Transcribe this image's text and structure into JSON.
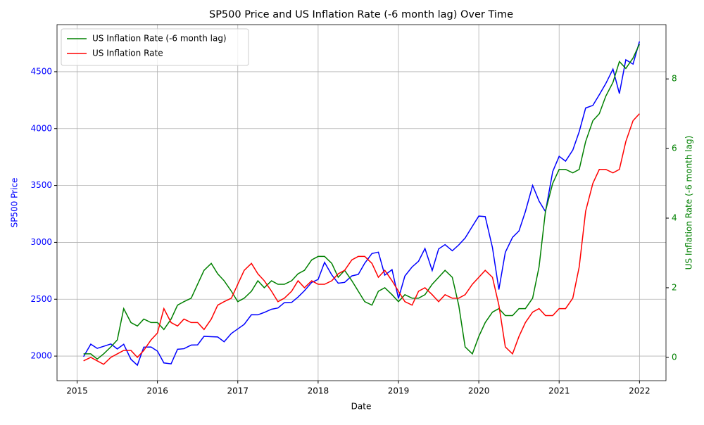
{
  "chart_data": {
    "type": "line",
    "title": "SP500 Price and US Inflation Rate (-6 month lag) Over Time",
    "x_label": "Date",
    "y_label": "SP500 Price",
    "y2_label": "US Inflation Rate (-6 month lag)",
    "x": [
      2015.08,
      2015.17,
      2015.25,
      2015.33,
      2015.42,
      2015.5,
      2015.58,
      2015.67,
      2015.75,
      2015.83,
      2015.92,
      2016,
      2016.08,
      2016.17,
      2016.25,
      2016.33,
      2016.42,
      2016.5,
      2016.58,
      2016.67,
      2016.75,
      2016.83,
      2016.92,
      2017,
      2017.08,
      2017.17,
      2017.25,
      2017.33,
      2017.42,
      2017.5,
      2017.58,
      2017.67,
      2017.75,
      2017.83,
      2017.92,
      2018,
      2018.08,
      2018.17,
      2018.25,
      2018.33,
      2018.42,
      2018.5,
      2018.58,
      2018.67,
      2018.75,
      2018.83,
      2018.92,
      2019,
      2019.08,
      2019.17,
      2019.25,
      2019.33,
      2019.42,
      2019.5,
      2019.58,
      2019.67,
      2019.75,
      2019.83,
      2019.92,
      2020,
      2020.08,
      2020.17,
      2020.25,
      2020.33,
      2020.42,
      2020.5,
      2020.58,
      2020.67,
      2020.75,
      2020.83,
      2020.92,
      2021,
      2021.08,
      2021.17,
      2021.25,
      2021.33,
      2021.42,
      2021.5,
      2021.58,
      2021.67,
      2021.75,
      2021.83,
      2021.92,
      2022
    ],
    "series": [
      {
        "color": "#0000ff",
        "axis": "y",
        "values": [
          1995,
          2105,
          2068,
          2086,
          2107,
          2063,
          2104,
          1972,
          1920,
          2079,
          2080,
          2044,
          1940,
          1932,
          2060,
          2065,
          2097,
          2099,
          2174,
          2171,
          2168,
          2126,
          2199,
          2239,
          2279,
          2364,
          2363,
          2384,
          2412,
          2423,
          2470,
          2472,
          2519,
          2575,
          2648,
          2674,
          2824,
          2714,
          2641,
          2648,
          2705,
          2718,
          2816,
          2902,
          2914,
          2712,
          2760,
          2507,
          2704,
          2784,
          2834,
          2946,
          2752,
          2942,
          2980,
          2926,
          2977,
          3038,
          3141,
          3231,
          3226,
          2954,
          2585,
          2912,
          3044,
          3100,
          3271,
          3500,
          3363,
          3270,
          3622,
          3756,
          3714,
          3811,
          3973,
          4181,
          4204,
          4298,
          4395,
          4523,
          4308,
          4605,
          4567,
          4766
        ]
      },
      {
        "name": "US Inflation Rate (-6 month lag)",
        "color": "#008000",
        "axis": "y2",
        "values": [
          0.1,
          0.1,
          -0.05,
          0.1,
          0.3,
          0.5,
          1.4,
          1.0,
          0.9,
          1.1,
          1.0,
          1.0,
          0.8,
          1.1,
          1.5,
          1.6,
          1.7,
          2.1,
          2.5,
          2.7,
          2.4,
          2.2,
          1.9,
          1.6,
          1.7,
          1.9,
          2.2,
          2.0,
          2.2,
          2.1,
          2.1,
          2.2,
          2.4,
          2.5,
          2.8,
          2.9,
          2.9,
          2.7,
          2.3,
          2.5,
          2.2,
          1.9,
          1.6,
          1.5,
          1.9,
          2.0,
          1.8,
          1.6,
          1.8,
          1.7,
          1.7,
          1.8,
          2.1,
          2.3,
          2.5,
          2.3,
          1.5,
          0.3,
          0.1,
          0.6,
          1.0,
          1.3,
          1.4,
          1.2,
          1.2,
          1.4,
          1.4,
          1.7,
          2.6,
          4.2,
          5.0,
          5.4,
          5.4,
          5.3,
          5.4,
          6.2,
          6.8,
          7.0,
          7.5,
          7.9,
          8.5,
          8.3,
          8.6,
          9.0
        ]
      },
      {
        "name": "US Inflation Rate",
        "color": "#ff0000",
        "axis": "y2",
        "values": [
          -0.1,
          0.0,
          -0.1,
          -0.2,
          0.0,
          0.1,
          0.2,
          0.2,
          0.0,
          0.2,
          0.5,
          0.7,
          1.4,
          1.0,
          0.9,
          1.1,
          1.0,
          1.0,
          0.8,
          1.1,
          1.5,
          1.6,
          1.7,
          2.1,
          2.5,
          2.7,
          2.4,
          2.2,
          1.9,
          1.6,
          1.7,
          1.9,
          2.2,
          2.0,
          2.2,
          2.1,
          2.1,
          2.2,
          2.4,
          2.5,
          2.8,
          2.9,
          2.9,
          2.7,
          2.3,
          2.5,
          2.2,
          1.9,
          1.6,
          1.5,
          1.9,
          2.0,
          1.8,
          1.6,
          1.8,
          1.7,
          1.7,
          1.8,
          2.1,
          2.3,
          2.5,
          2.3,
          1.5,
          0.3,
          0.1,
          0.6,
          1.0,
          1.3,
          1.4,
          1.2,
          1.2,
          1.4,
          1.4,
          1.7,
          2.6,
          4.2,
          5.0,
          5.4,
          5.4,
          5.3,
          5.4,
          6.2,
          6.8,
          7.0
        ]
      }
    ],
    "xlim": [
      2014.75,
      2022.33
    ],
    "xticks": [
      2015,
      2016,
      2017,
      2018,
      2019,
      2020,
      2021,
      2022
    ],
    "ylim": [
      1784,
      4914
    ],
    "yticks": [
      2000,
      2500,
      3000,
      3500,
      4000,
      4500
    ],
    "y2lim": [
      -0.67,
      9.56
    ],
    "y2ticks": [
      0,
      2,
      4,
      6,
      8
    ],
    "grid": true,
    "legend": "upper left"
  }
}
